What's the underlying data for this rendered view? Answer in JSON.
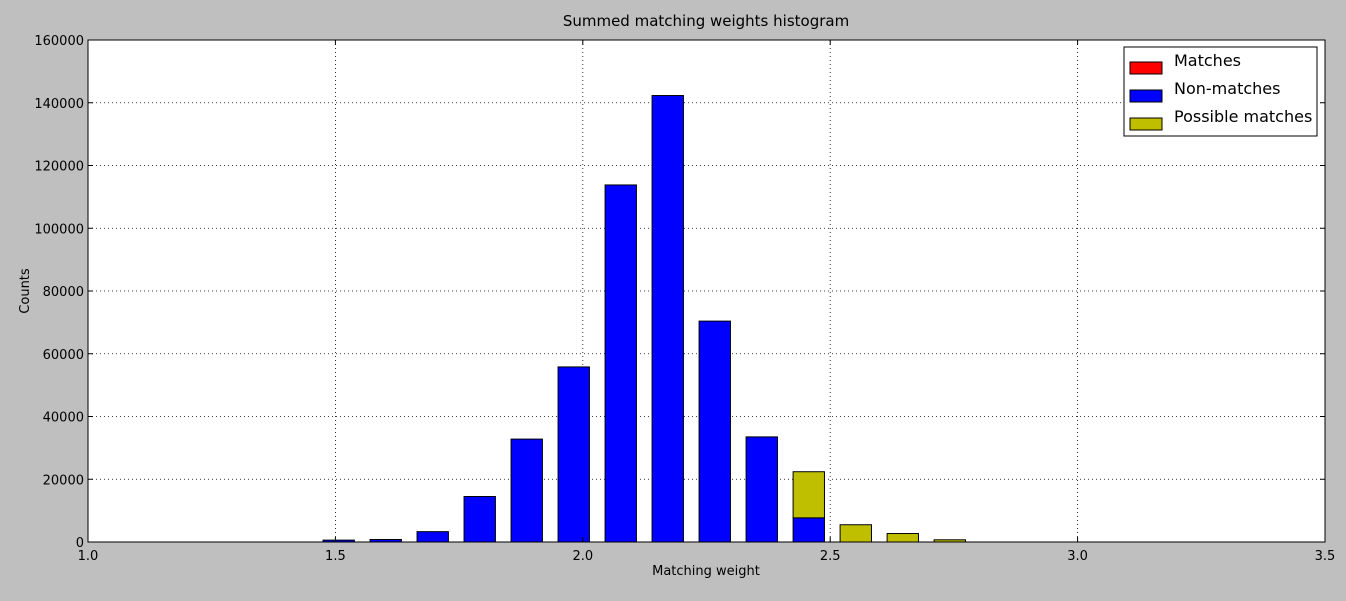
{
  "chart_data": {
    "type": "bar",
    "title": "Summed matching weights histogram",
    "xlabel": "Matching weight",
    "ylabel": "Counts",
    "xlim": [
      1.0,
      3.5
    ],
    "ylim": [
      0,
      160000
    ],
    "xticks": [
      "1.0",
      "1.5",
      "2.0",
      "2.5",
      "3.0",
      "3.5"
    ],
    "yticks": [
      "0",
      "20000",
      "40000",
      "60000",
      "80000",
      "100000",
      "120000",
      "140000",
      "160000"
    ],
    "bin_width": 0.095,
    "bar_width": 0.0634,
    "x": [
      1.475,
      1.57,
      1.665,
      1.76,
      1.855,
      1.95,
      2.045,
      2.14,
      2.235,
      2.33,
      2.425,
      2.52,
      2.615,
      2.71
    ],
    "series": [
      {
        "name": "Matches",
        "color": "#ff0000",
        "values": [
          0,
          0,
          0,
          0,
          0,
          0,
          0,
          0,
          0,
          0,
          0,
          0,
          0,
          0
        ]
      },
      {
        "name": "Non-matches",
        "color": "#0000ff",
        "values": [
          600,
          800,
          3300,
          14500,
          32800,
          55800,
          113800,
          142300,
          70400,
          33500,
          7700,
          0,
          0,
          0
        ]
      },
      {
        "name": "Possible matches",
        "color": "#bfbf00",
        "values": [
          0,
          0,
          0,
          0,
          0,
          0,
          0,
          0,
          0,
          0,
          14700,
          5500,
          2700,
          700
        ]
      }
    ],
    "stacked": true,
    "grid": true,
    "legend_position": "top-right"
  }
}
